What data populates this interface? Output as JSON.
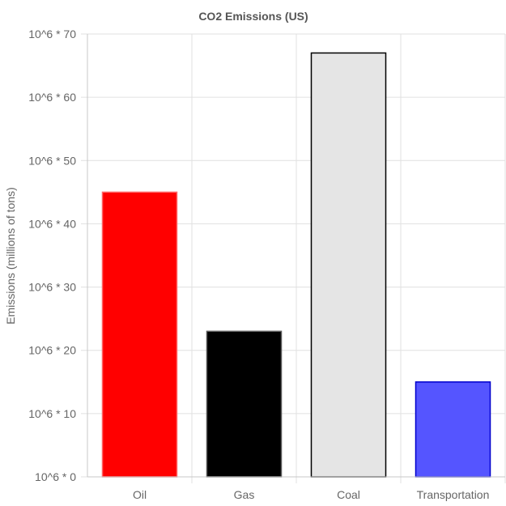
{
  "chart_data": {
    "type": "bar",
    "title": "CO2 Emissions (US)",
    "xlabel": "",
    "ylabel": "Emissions (millions of tons)",
    "categories": [
      "Oil",
      "Gas",
      "Coal",
      "Transportation"
    ],
    "values": [
      45,
      23,
      67,
      15
    ],
    "ylim": [
      0,
      70
    ],
    "ytick_step": 10,
    "ytick_prefix": "10^6 * ",
    "grid": true,
    "legend": "none",
    "colors": [
      {
        "fill": "#ff0000",
        "stroke": "#ff6666"
      },
      {
        "fill": "#000000",
        "stroke": "#555555"
      },
      {
        "fill": "#e5e5e5",
        "stroke": "#000000"
      },
      {
        "fill": "#5555ff",
        "stroke": "#0000cc"
      }
    ],
    "gridline_color": "#e0e0e0",
    "axis_color": "#c8c8c8"
  }
}
